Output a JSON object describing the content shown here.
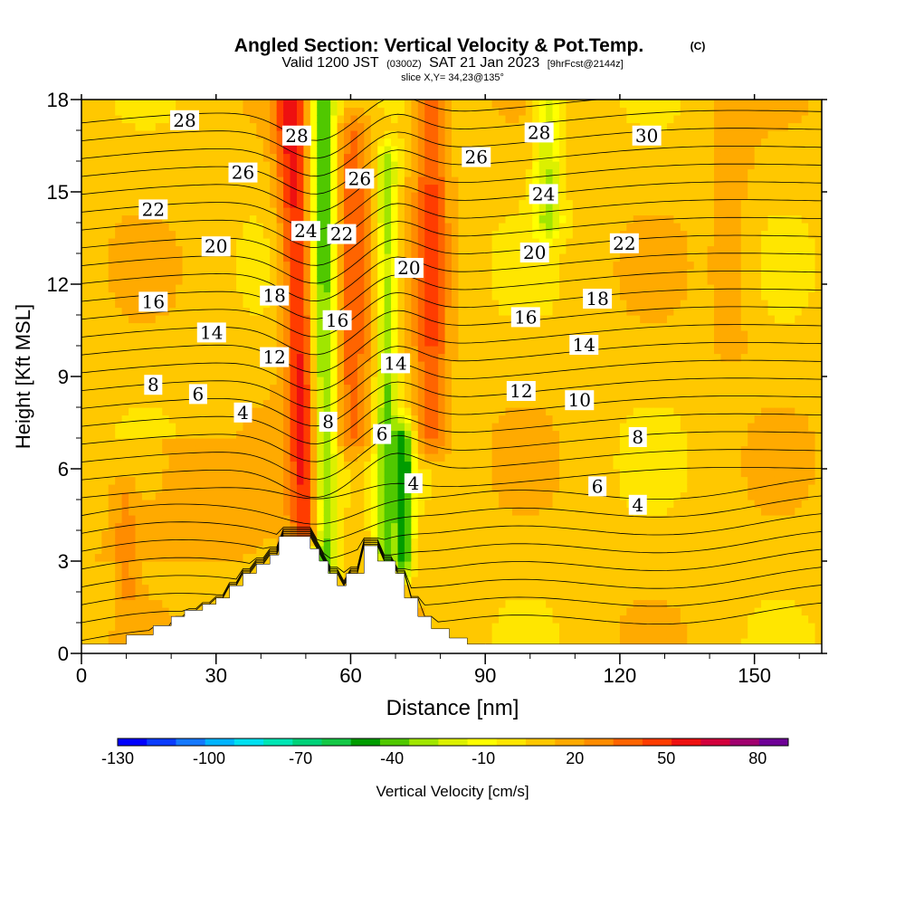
{
  "header": {
    "title": "Angled Section: Vertical Velocity & Pot.Temp.",
    "title_tag": "(C)",
    "valid_prefix": "Valid 1200 JST",
    "valid_utc": "(0300Z)",
    "valid_date": "SAT 21 Jan 2023",
    "forecast": "[9hrFcst@2144z]",
    "slice": "slice X,Y= 34,23@135°"
  },
  "chart_data": {
    "type": "heatmap",
    "xlabel": "Distance [nm]",
    "ylabel": "Height [Kft MSL]",
    "xlim": [
      0,
      165
    ],
    "ylim": [
      0,
      18
    ],
    "x_ticks": [
      "0",
      "30",
      "60",
      "90",
      "120",
      "150"
    ],
    "x_tick_values": [
      0,
      30,
      60,
      90,
      120,
      150
    ],
    "y_ticks": [
      "0",
      "3",
      "6",
      "9",
      "12",
      "15",
      "18"
    ],
    "y_tick_values": [
      0,
      3,
      6,
      9,
      12,
      15,
      18
    ],
    "colorbar": {
      "label": "Vertical Velocity [cm/s]",
      "tick_labels": [
        "-130",
        "-100",
        "-70",
        "-40",
        "-10",
        "20",
        "50",
        "80"
      ],
      "tick_values": [
        -130,
        -100,
        -70,
        -40,
        -10,
        20,
        50,
        80
      ],
      "range": [
        -130,
        90
      ],
      "step": 10,
      "colors": [
        "#0000ff",
        "#0a3cff",
        "#1478ff",
        "#00b4ff",
        "#00e0f0",
        "#00e6b4",
        "#00d278",
        "#14c846",
        "#009c00",
        "#50c800",
        "#a0e600",
        "#dcf000",
        "#ffff00",
        "#ffe600",
        "#ffc800",
        "#ffaa00",
        "#ff8c00",
        "#ff6400",
        "#ff3c00",
        "#ee1010",
        "#d2003c",
        "#a0006e",
        "#6e0096"
      ]
    },
    "velocity_features": [
      {
        "kind": "updraft",
        "x_center": 49,
        "x_width": 6,
        "z_min": 4,
        "z_max": 18,
        "w": 60
      },
      {
        "kind": "downdraft",
        "x_center": 54,
        "x_width": 5,
        "z_min": 3,
        "z_max": 18,
        "w": -50
      },
      {
        "kind": "updraft",
        "x_center": 60,
        "x_width": 8,
        "z_min": 7,
        "z_max": 17,
        "w": 40
      },
      {
        "kind": "downdraft",
        "x_center": 68,
        "x_width": 4,
        "z_min": 3,
        "z_max": 16,
        "w": -35
      },
      {
        "kind": "downdraft",
        "x_center": 72,
        "x_width": 3,
        "z_min": 3,
        "z_max": 7,
        "w": -45
      },
      {
        "kind": "updraft",
        "x_center": 78,
        "x_width": 6,
        "z_min": 7,
        "z_max": 18,
        "w": 45
      },
      {
        "kind": "downdraft",
        "x_center": 104,
        "x_width": 5,
        "z_min": 14,
        "z_max": 18,
        "w": -25
      },
      {
        "kind": "updraft",
        "x_center": 8,
        "x_width": 4,
        "z_min": 2,
        "z_max": 5,
        "w": 25
      },
      {
        "kind": "updraft",
        "x_center": 145,
        "x_width": 8,
        "z_min": 10,
        "z_max": 18,
        "w": 20
      }
    ],
    "terrain": {
      "x": [
        0,
        10,
        10,
        16,
        16,
        20,
        20,
        23,
        23,
        27,
        27,
        30,
        30,
        33,
        33,
        36,
        36,
        39,
        39,
        42,
        42,
        44,
        44,
        48,
        48,
        51,
        51,
        53,
        53,
        55,
        55,
        57,
        57,
        59,
        59,
        63,
        63,
        65,
        65,
        66,
        66,
        70,
        70,
        72,
        72,
        75,
        75,
        78,
        78,
        82,
        82,
        86,
        86,
        90,
        90,
        165
      ],
      "z": [
        0.3,
        0.3,
        0.6,
        0.6,
        0.9,
        0.9,
        1.2,
        1.2,
        1.4,
        1.4,
        1.6,
        1.6,
        1.8,
        1.8,
        2.2,
        2.2,
        2.6,
        2.6,
        2.9,
        2.9,
        3.2,
        3.2,
        3.8,
        3.8,
        3.8,
        3.8,
        3.4,
        3.4,
        3.0,
        3.0,
        2.6,
        2.6,
        2.2,
        2.2,
        2.6,
        2.6,
        3.5,
        3.5,
        3.5,
        3.5,
        3.0,
        3.0,
        2.6,
        2.6,
        1.8,
        1.8,
        1.2,
        1.2,
        0.8,
        0.8,
        0.5,
        0.5,
        0.3,
        0.3,
        0.3,
        0.3
      ]
    },
    "contour_labels": [
      {
        "text": "28",
        "x": 23,
        "z": 17.3
      },
      {
        "text": "28",
        "x": 48,
        "z": 16.8
      },
      {
        "text": "28",
        "x": 102,
        "z": 16.9
      },
      {
        "text": "30",
        "x": 126,
        "z": 16.8
      },
      {
        "text": "26",
        "x": 36,
        "z": 15.6
      },
      {
        "text": "26",
        "x": 62,
        "z": 15.4
      },
      {
        "text": "26",
        "x": 88,
        "z": 16.1
      },
      {
        "text": "24",
        "x": 50,
        "z": 13.7
      },
      {
        "text": "24",
        "x": 103,
        "z": 14.9
      },
      {
        "text": "22",
        "x": 16,
        "z": 14.4
      },
      {
        "text": "22",
        "x": 58,
        "z": 13.6
      },
      {
        "text": "22",
        "x": 121,
        "z": 13.3
      },
      {
        "text": "20",
        "x": 30,
        "z": 13.2
      },
      {
        "text": "20",
        "x": 73,
        "z": 12.5
      },
      {
        "text": "20",
        "x": 101,
        "z": 13.0
      },
      {
        "text": "18",
        "x": 43,
        "z": 11.6
      },
      {
        "text": "18",
        "x": 115,
        "z": 11.5
      },
      {
        "text": "16",
        "x": 16,
        "z": 11.4
      },
      {
        "text": "16",
        "x": 57,
        "z": 10.8
      },
      {
        "text": "16",
        "x": 99,
        "z": 10.9
      },
      {
        "text": "14",
        "x": 29,
        "z": 10.4
      },
      {
        "text": "14",
        "x": 70,
        "z": 9.4
      },
      {
        "text": "14",
        "x": 112,
        "z": 10.0
      },
      {
        "text": "12",
        "x": 43,
        "z": 9.6
      },
      {
        "text": "12",
        "x": 98,
        "z": 8.5
      },
      {
        "text": "10",
        "x": 111,
        "z": 8.2
      },
      {
        "text": "8",
        "x": 16,
        "z": 8.7
      },
      {
        "text": "8",
        "x": 55,
        "z": 7.5
      },
      {
        "text": "8",
        "x": 124,
        "z": 7.0
      },
      {
        "text": "6",
        "x": 26,
        "z": 8.4
      },
      {
        "text": "6",
        "x": 67,
        "z": 7.1
      },
      {
        "text": "6",
        "x": 115,
        "z": 5.4
      },
      {
        "text": "4",
        "x": 36,
        "z": 7.8
      },
      {
        "text": "4",
        "x": 74,
        "z": 5.5
      },
      {
        "text": "4",
        "x": 124,
        "z": 4.8
      }
    ]
  }
}
